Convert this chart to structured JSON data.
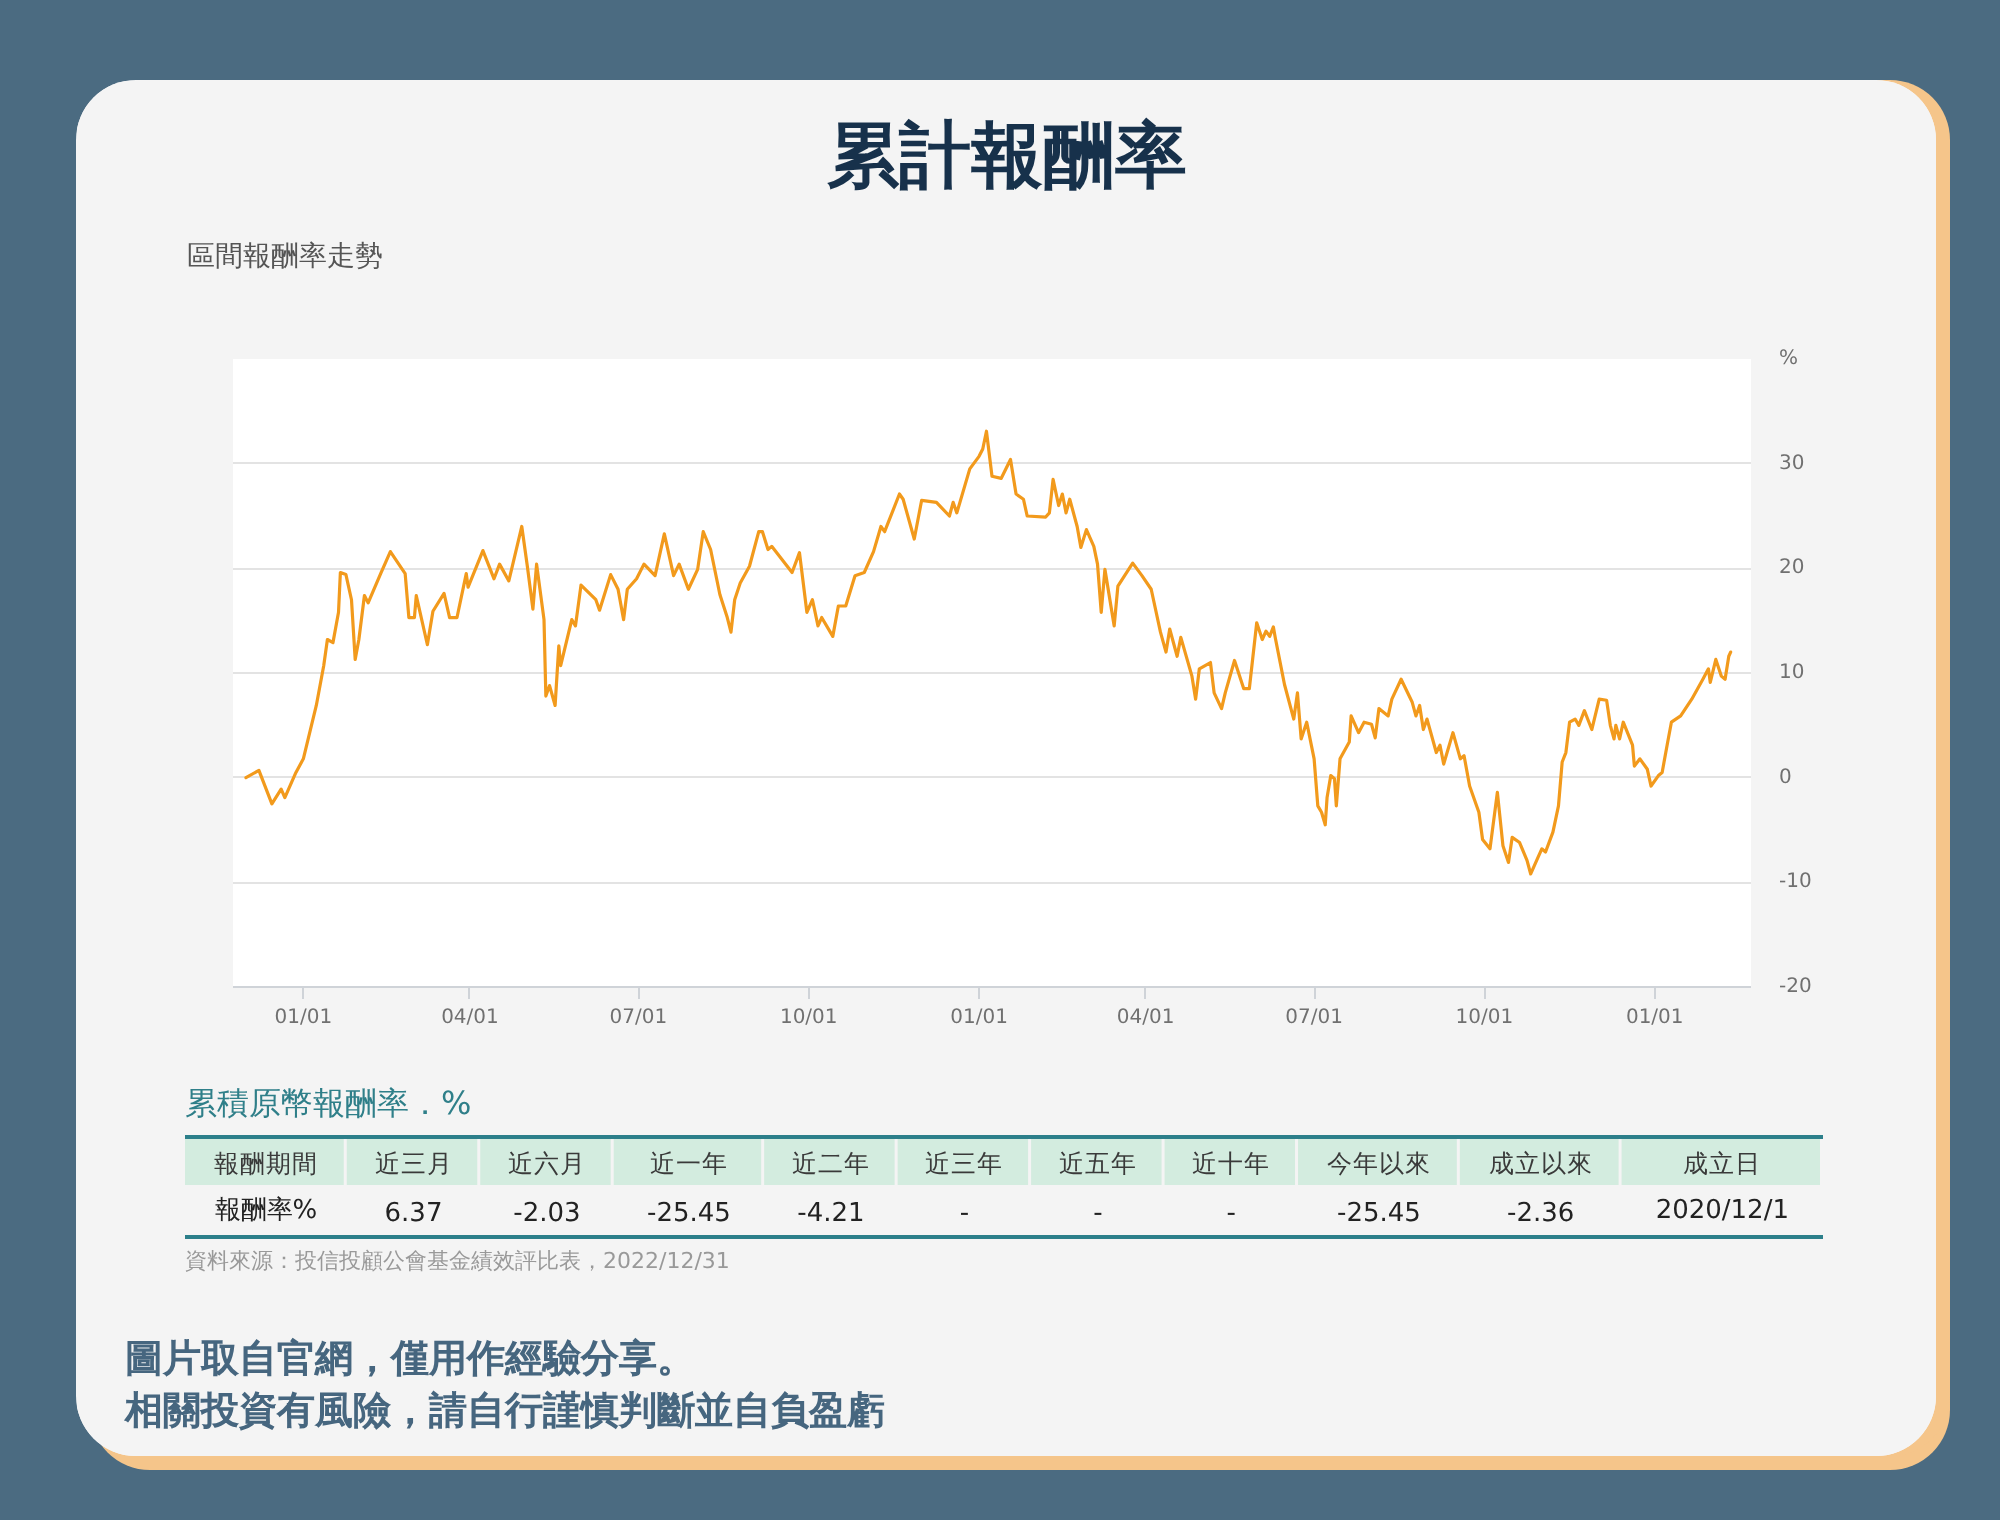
{
  "chart_data": [
    {
      "type": "line",
      "title": "累計報酬率",
      "subtitle": "區間報酬率走勢",
      "x": [
        "2020-12-01",
        "2020-12-08",
        "2020-12-15",
        "2020-12-20",
        "2020-12-22",
        "2020-12-28",
        "2021-01-01",
        "2021-01-08",
        "2021-01-12",
        "2021-01-14",
        "2021-01-17",
        "2021-01-20",
        "2021-01-21",
        "2021-01-24",
        "2021-01-27",
        "2021-01-29",
        "2021-01-31",
        "2021-02-03",
        "2021-02-05",
        "2021-02-12",
        "2021-02-17",
        "2021-02-25",
        "2021-02-27",
        "2021-03-02",
        "2021-03-03",
        "2021-03-09",
        "2021-03-12",
        "2021-03-18",
        "2021-03-21",
        "2021-03-25",
        "2021-03-30",
        "2021-03-31",
        "2021-04-08",
        "2021-04-14",
        "2021-04-17",
        "2021-04-22",
        "2021-04-29",
        "2021-05-02",
        "2021-05-05",
        "2021-05-07",
        "2021-05-11",
        "2021-05-12",
        "2021-05-14",
        "2021-05-17",
        "2021-05-19",
        "2021-05-20",
        "2021-05-26",
        "2021-05-28",
        "2021-05-31",
        "2021-06-08",
        "2021-06-10",
        "2021-06-16",
        "2021-06-20",
        "2021-06-23",
        "2021-06-25",
        "2021-06-30",
        "2021-07-04",
        "2021-07-10",
        "2021-07-15",
        "2021-07-20",
        "2021-07-23",
        "2021-07-28",
        "2021-08-02",
        "2021-08-05",
        "2021-08-09",
        "2021-08-14",
        "2021-08-18",
        "2021-08-20",
        "2021-08-22",
        "2021-08-25",
        "2021-08-30",
        "2021-09-04",
        "2021-09-06",
        "2021-09-09",
        "2021-09-11",
        "2021-09-22",
        "2021-09-26",
        "2021-09-30",
        "2021-10-03",
        "2021-10-06",
        "2021-10-08",
        "2021-10-14",
        "2021-10-17",
        "2021-10-21",
        "2021-10-26",
        "2021-10-31",
        "2021-11-05",
        "2021-11-09",
        "2021-11-11",
        "2021-11-19",
        "2021-11-21",
        "2021-11-27",
        "2021-12-01",
        "2021-12-09",
        "2021-12-16",
        "2021-12-18",
        "2021-12-20",
        "2021-12-27",
        "2022-01-01",
        "2022-01-03",
        "2022-01-05",
        "2022-01-08",
        "2022-01-13",
        "2022-01-18",
        "2022-01-21",
        "2022-01-25",
        "2022-01-27",
        "2022-02-06",
        "2022-02-08",
        "2022-02-10",
        "2022-02-13",
        "2022-02-15",
        "2022-02-17",
        "2022-02-19",
        "2022-02-23",
        "2022-02-25",
        "2022-02-28",
        "2022-03-04",
        "2022-03-06",
        "2022-03-08",
        "2022-03-10",
        "2022-03-15",
        "2022-03-17",
        "2022-03-25",
        "2022-03-30",
        "2022-04-04",
        "2022-04-09",
        "2022-04-12",
        "2022-04-14",
        "2022-04-18",
        "2022-04-20",
        "2022-04-26",
        "2022-04-28",
        "2022-04-30",
        "2022-05-06",
        "2022-05-08",
        "2022-05-12",
        "2022-05-14",
        "2022-05-19",
        "2022-05-24",
        "2022-05-27",
        "2022-05-31",
        "2022-06-03",
        "2022-06-05",
        "2022-06-07",
        "2022-06-09",
        "2022-06-10",
        "2022-06-15",
        "2022-06-20",
        "2022-06-22",
        "2022-06-24",
        "2022-06-27",
        "2022-07-01",
        "2022-07-03",
        "2022-07-05",
        "2022-07-07",
        "2022-07-08",
        "2022-07-10",
        "2022-07-12",
        "2022-07-13",
        "2022-07-15",
        "2022-07-20",
        "2022-07-21",
        "2022-07-25",
        "2022-07-28",
        "2022-08-01",
        "2022-08-03",
        "2022-08-05",
        "2022-08-10",
        "2022-08-12",
        "2022-08-17",
        "2022-08-23",
        "2022-08-25",
        "2022-08-27",
        "2022-08-29",
        "2022-08-31",
        "2022-09-05",
        "2022-09-07",
        "2022-09-09",
        "2022-09-14",
        "2022-09-18",
        "2022-09-20",
        "2022-09-23",
        "2022-09-28",
        "2022-09-30",
        "2022-10-04",
        "2022-10-08",
        "2022-10-11",
        "2022-10-14",
        "2022-10-16",
        "2022-10-20",
        "2022-10-24",
        "2022-10-26",
        "2022-10-30",
        "2022-11-01",
        "2022-11-03",
        "2022-11-07",
        "2022-11-10",
        "2022-11-12",
        "2022-11-14",
        "2022-11-16",
        "2022-11-19",
        "2022-11-21",
        "2022-11-24",
        "2022-11-28",
        "2022-12-02",
        "2022-12-06",
        "2022-12-08",
        "2022-12-10",
        "2022-12-11",
        "2022-12-13",
        "2022-12-15",
        "2022-12-20",
        "2022-12-21",
        "2022-12-24",
        "2022-12-28",
        "2022-12-30",
        "2023-01-03",
        "2023-01-05",
        "2023-01-08",
        "2023-01-10",
        "2023-01-15",
        "2023-01-21",
        "2023-01-27",
        "2023-01-30",
        "2023-01-31",
        "2023-02-03",
        "2023-02-06",
        "2023-02-08",
        "2023-02-10",
        "2023-02-11"
      ],
      "series": [
        {
          "color": "#f29a1c",
          "values": [
            0,
            0.7,
            -2.5,
            -1.1,
            -1.9,
            0.5,
            1.8,
            6.9,
            10.7,
            13.2,
            12.9,
            15.8,
            19.6,
            19.4,
            17.0,
            11.3,
            13.2,
            17.4,
            16.7,
            19.6,
            21.6,
            19.5,
            15.3,
            15.3,
            17.4,
            12.7,
            15.9,
            17.6,
            15.3,
            15.3,
            19.5,
            18.2,
            21.7,
            19.0,
            20.4,
            18.8,
            24.0,
            20.2,
            16.1,
            20.4,
            15.1,
            7.8,
            8.8,
            6.9,
            12.6,
            10.7,
            15.1,
            14.5,
            18.4,
            17.0,
            16.0,
            19.4,
            18.0,
            15.1,
            18.0,
            19.0,
            20.4,
            19.3,
            23.3,
            19.3,
            20.4,
            18.0,
            19.9,
            23.5,
            21.8,
            17.5,
            15.3,
            13.9,
            17.0,
            18.6,
            20.2,
            23.5,
            23.5,
            21.8,
            22.1,
            19.6,
            21.5,
            15.8,
            17.0,
            14.5,
            15.3,
            13.5,
            16.4,
            16.4,
            19.3,
            19.6,
            21.6,
            24.0,
            23.5,
            27.1,
            26.6,
            22.8,
            26.5,
            26.3,
            25.0,
            26.3,
            25.3,
            29.5,
            30.7,
            31.4,
            33.1,
            28.8,
            28.6,
            30.4,
            27.1,
            26.6,
            25.0,
            24.9,
            25.3,
            28.5,
            26.0,
            27.1,
            25.3,
            26.6,
            24.0,
            22.0,
            23.7,
            22.1,
            20.4,
            15.8,
            19.9,
            14.5,
            18.3,
            20.5,
            19.3,
            18.0,
            13.9,
            12.0,
            14.2,
            11.6,
            13.4,
            9.7,
            7.5,
            10.4,
            11.0,
            8.1,
            6.6,
            8.1,
            11.2,
            8.5,
            8.5,
            14.8,
            13.2,
            14.0,
            13.5,
            14.4,
            13.4,
            8.9,
            5.6,
            8.1,
            3.7,
            5.3,
            1.8,
            -2.7,
            -3.3,
            -4.5,
            -1.9,
            0.2,
            -0.1,
            -2.7,
            1.8,
            3.4,
            5.9,
            4.3,
            5.3,
            5.1,
            3.8,
            6.6,
            5.9,
            7.5,
            9.4,
            7.2,
            5.9,
            6.9,
            4.6,
            5.6,
            2.4,
            3.1,
            1.3,
            4.3,
            1.8,
            2.1,
            -0.8,
            -3.3,
            -5.9,
            -6.8,
            -1.4,
            -6.5,
            -8.1,
            -5.7,
            -6.2,
            -7.9,
            -9.2,
            -7.6,
            -6.8,
            -7.1,
            -5.2,
            -2.7,
            1.5,
            2.4,
            5.3,
            5.6,
            5.0,
            6.4,
            4.6,
            7.5,
            7.4,
            5.0,
            3.7,
            5.0,
            3.7,
            5.3,
            3.1,
            1.1,
            1.8,
            0.8,
            -0.8,
            0.2,
            0.5,
            3.4,
            5.3,
            5.9,
            7.5,
            9.4,
            10.4,
            9.1,
            11.3,
            9.7,
            9.4,
            11.6,
            12.0
          ]
        }
      ],
      "xlim": [
        "2020-11-24",
        "2023-02-22"
      ],
      "xticks": [
        {
          "value": "2021-01-01",
          "label": "01/01"
        },
        {
          "value": "2021-04-01",
          "label": "04/01"
        },
        {
          "value": "2021-07-01",
          "label": "07/01"
        },
        {
          "value": "2021-10-01",
          "label": "10/01"
        },
        {
          "value": "2022-01-01",
          "label": "01/01"
        },
        {
          "value": "2022-04-01",
          "label": "04/01"
        },
        {
          "value": "2022-07-01",
          "label": "07/01"
        },
        {
          "value": "2022-10-01",
          "label": "10/01"
        },
        {
          "value": "2023-01-01",
          "label": "01/01"
        }
      ],
      "ylim": [
        -20,
        40
      ],
      "yticks": [
        -20,
        -10,
        0,
        10,
        20,
        30,
        {
          "value": 40,
          "label": "%"
        }
      ],
      "grid": "y",
      "line_style": "solid"
    },
    {
      "type": "other",
      "title": "累積原幣報酬率．%",
      "xlabel": "報酬期間",
      "ylabel": "報酬率%",
      "categories": [
        "近三月",
        "近六月",
        "近一年",
        "近二年",
        "近三年",
        "近五年",
        "近十年",
        "今年以來",
        "成立以來",
        "成立日"
      ],
      "value_labels": [
        "6.37",
        "-2.03",
        "-25.45",
        "-4.21",
        "-",
        "-",
        "-",
        "-25.45",
        "-2.36",
        "2020/12/1"
      ],
      "annotations": [
        "資料來源：投信投顧公會基金績效評比表，2022/12/31",
        "圖片取自官網，僅用作經驗分享。",
        "相關投資有風險，請自行謹慎判斷並自負盈虧"
      ]
    }
  ]
}
